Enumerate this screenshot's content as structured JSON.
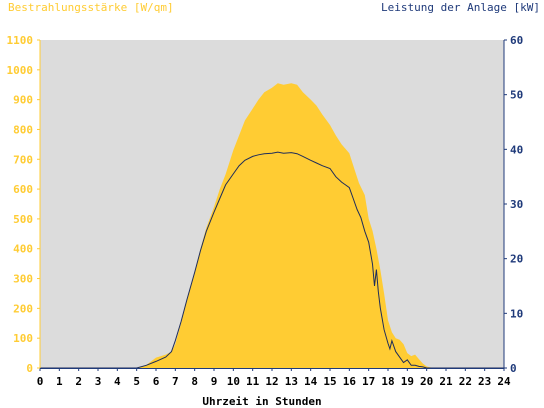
{
  "chart_data": {
    "type": "area",
    "left_axis_title": "Bestrahlungsstärke [W/qm]",
    "right_axis_title": "Leistung der Anlage [kW]",
    "xlabel": "Uhrzeit in Stunden",
    "x_ticks": [
      "0",
      "1",
      "2",
      "3",
      "4",
      "5",
      "6",
      "7",
      "8",
      "9",
      "10",
      "11",
      "12",
      "13",
      "14",
      "15",
      "16",
      "17",
      "18",
      "19",
      "20",
      "21",
      "22",
      "23",
      "24"
    ],
    "left_ticks": [
      "0",
      "100",
      "200",
      "300",
      "400",
      "500",
      "600",
      "700",
      "800",
      "900",
      "1000",
      "1100"
    ],
    "right_ticks": [
      "0",
      "10",
      "20",
      "30",
      "40",
      "50",
      "60"
    ],
    "xlim": [
      0,
      24
    ],
    "ylim_left": [
      0,
      1100
    ],
    "ylim_right": [
      0,
      60
    ],
    "grid": false,
    "colors": {
      "irradiance_fill": "#ffcc33",
      "power_line": "#1f2d5a",
      "plot_background": "#dcdcdc",
      "left_axis_text": "#ffcc33",
      "right_axis_text": "#1f3a7a"
    },
    "series": [
      {
        "axis": "left",
        "color": "#ffcc33",
        "x": [
          0,
          5,
          5.5,
          6,
          6.5,
          6.8,
          7,
          7.3,
          7.6,
          8,
          8.3,
          8.6,
          9,
          9.3,
          9.6,
          10,
          10.3,
          10.6,
          11,
          11.3,
          11.6,
          12,
          12.3,
          12.6,
          13,
          13.3,
          13.6,
          14,
          14.3,
          14.6,
          15,
          15.3,
          15.6,
          16,
          16.3,
          16.5,
          16.8,
          17,
          17.2,
          17.4,
          17.6,
          17.8,
          18,
          18.2,
          18.4,
          18.6,
          18.8,
          19,
          19.2,
          19.4,
          19.6,
          19.8,
          20,
          20.2,
          20.5,
          21,
          24
        ],
        "values": [
          0,
          0,
          10,
          35,
          45,
          55,
          80,
          150,
          230,
          320,
          400,
          470,
          540,
          600,
          650,
          730,
          780,
          830,
          870,
          900,
          925,
          940,
          955,
          950,
          955,
          950,
          925,
          900,
          880,
          850,
          815,
          780,
          750,
          720,
          660,
          620,
          580,
          500,
          460,
          400,
          330,
          250,
          160,
          120,
          100,
          95,
          80,
          50,
          40,
          45,
          30,
          15,
          5,
          2,
          0,
          0,
          0
        ]
      },
      {
        "axis": "right",
        "color": "#1f2d5a",
        "x": [
          0,
          5,
          5.5,
          6,
          6.5,
          6.8,
          7,
          7.3,
          7.6,
          8,
          8.3,
          8.6,
          9,
          9.3,
          9.6,
          10,
          10.3,
          10.6,
          11,
          11.3,
          11.6,
          12,
          12.3,
          12.6,
          13,
          13.3,
          13.6,
          14,
          14.3,
          14.6,
          15,
          15.3,
          15.6,
          15.8,
          16,
          16.2,
          16.4,
          16.6,
          16.8,
          17,
          17.2,
          17.3,
          17.4,
          17.5,
          17.6,
          17.8,
          18,
          18.1,
          18.2,
          18.4,
          18.6,
          18.8,
          19,
          19.2,
          19.4,
          19.6,
          19.8,
          20,
          20.3,
          21,
          24
        ],
        "values": [
          0,
          0,
          0.5,
          1.2,
          2,
          3,
          5,
          8.5,
          12.5,
          17.5,
          21.5,
          25,
          28.5,
          31,
          33.5,
          35.5,
          37,
          38,
          38.7,
          39,
          39.2,
          39.3,
          39.5,
          39.3,
          39.4,
          39.2,
          38.7,
          38,
          37.5,
          37,
          36.5,
          35,
          34,
          33.5,
          33,
          31,
          29,
          27.5,
          25,
          23,
          19,
          15,
          18,
          14,
          11,
          7,
          4.5,
          3.5,
          5,
          3,
          2,
          1,
          1.5,
          0.5,
          0.5,
          0.3,
          0.2,
          0,
          0,
          0,
          0
        ]
      }
    ]
  }
}
